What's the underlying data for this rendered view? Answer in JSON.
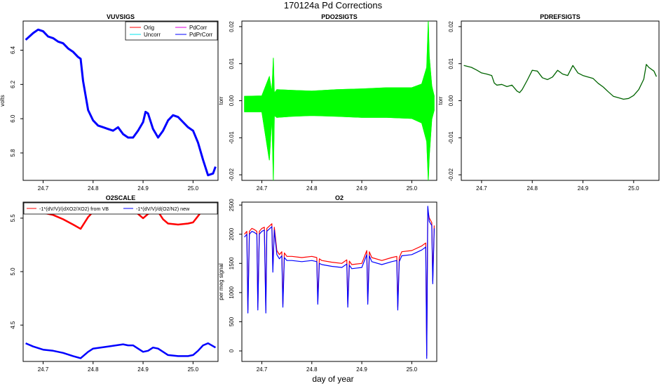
{
  "figure": {
    "title": "170124a   Pd Corrections",
    "xlabel": "day of year"
  },
  "colors": {
    "orig": "#ff0000",
    "uncorr": "#00e5ee",
    "pdcorr": "#dd00dd",
    "pdprcorr": "#0000ff",
    "pdo2": "#00ff00",
    "pdref": "#006400",
    "vb": "#ff0000",
    "new": "#0000ff",
    "axis": "#000000"
  },
  "chart_data": [
    {
      "id": "vuvsigs",
      "type": "line",
      "title": "VUVSIGS",
      "xlabel": "",
      "ylabel": "volts",
      "xlim": [
        24.66,
        25.05
      ],
      "ylim": [
        5.64,
        6.57
      ],
      "xticks": [
        {
          "v": 24.7,
          "label": "24.7"
        },
        {
          "v": 24.8,
          "label": "24.8"
        },
        {
          "v": 24.9,
          "label": "24.9"
        },
        {
          "v": 25.0,
          "label": "25.0"
        }
      ],
      "yticks": [
        {
          "v": 5.8,
          "label": "5.8"
        },
        {
          "v": 6.0,
          "label": "6.0"
        },
        {
          "v": 6.2,
          "label": "6.2"
        },
        {
          "v": 6.4,
          "label": "6.4"
        }
      ],
      "legend_position": "top-right",
      "legend": [
        {
          "label": "Orig",
          "color": "#ff0000"
        },
        {
          "label": "Uncorr",
          "color": "#00e5ee"
        },
        {
          "label": "PdCorr",
          "color": "#dd00dd"
        },
        {
          "label": "PdPrCorr",
          "color": "#0000ff"
        }
      ],
      "series": [
        {
          "name": "PdPrCorr",
          "color": "#0000ff",
          "width": 3,
          "x": [
            24.665,
            24.68,
            24.69,
            24.7,
            24.71,
            24.72,
            24.73,
            24.74,
            24.75,
            24.76,
            24.77,
            24.775,
            24.78,
            24.79,
            24.8,
            24.81,
            24.82,
            24.83,
            24.84,
            24.85,
            24.86,
            24.87,
            24.88,
            24.89,
            24.9,
            24.905,
            24.91,
            24.92,
            24.93,
            24.94,
            24.95,
            24.96,
            24.97,
            24.98,
            24.99,
            25.0,
            25.01,
            25.02,
            25.03,
            25.04,
            25.045
          ],
          "values": [
            6.46,
            6.5,
            6.52,
            6.51,
            6.48,
            6.47,
            6.45,
            6.44,
            6.41,
            6.39,
            6.36,
            6.35,
            6.22,
            6.05,
            5.99,
            5.96,
            5.95,
            5.94,
            5.93,
            5.95,
            5.91,
            5.89,
            5.89,
            5.93,
            5.98,
            6.04,
            6.03,
            5.94,
            5.89,
            5.93,
            5.99,
            6.02,
            6.01,
            5.98,
            5.95,
            5.93,
            5.86,
            5.76,
            5.67,
            5.68,
            5.72
          ]
        }
      ]
    },
    {
      "id": "pdo2sigts",
      "type": "line",
      "title": "PDO2SIGTS",
      "xlabel": "",
      "ylabel": "torr",
      "xlim": [
        24.66,
        25.05
      ],
      "ylim": [
        -0.0215,
        0.0215
      ],
      "xticks": [
        {
          "v": 24.7,
          "label": "24.7"
        },
        {
          "v": 24.8,
          "label": "24.8"
        },
        {
          "v": 24.9,
          "label": "24.9"
        },
        {
          "v": 25.0,
          "label": "25.0"
        }
      ],
      "yticks": [
        {
          "v": -0.02,
          "label": "-0.02"
        },
        {
          "v": -0.01,
          "label": "-0.01"
        },
        {
          "v": 0.0,
          "label": "0.00"
        },
        {
          "v": 0.01,
          "label": "0.01"
        },
        {
          "v": 0.02,
          "label": "0.02"
        }
      ],
      "series": [
        {
          "name": "PDO2 noise envelope upper",
          "color": "#00ff00",
          "width": 1,
          "x": [
            24.665,
            24.7,
            24.715,
            24.72,
            24.723,
            24.725,
            24.73,
            24.76,
            24.8,
            24.85,
            24.9,
            24.95,
            25.0,
            25.02,
            25.03,
            25.033,
            25.035,
            25.04,
            25.045
          ],
          "values": [
            0.0012,
            0.0013,
            0.0065,
            0.002,
            0.0115,
            0.002,
            0.003,
            0.0028,
            0.0026,
            0.003,
            0.0032,
            0.0035,
            0.0035,
            0.0045,
            0.009,
            0.0215,
            0.012,
            0.004,
            0.0012
          ]
        },
        {
          "name": "PDO2 noise envelope lower",
          "color": "#00ff00",
          "width": 1,
          "x": [
            24.665,
            24.7,
            24.715,
            24.72,
            24.723,
            24.725,
            24.73,
            24.76,
            24.8,
            24.85,
            24.9,
            24.95,
            25.0,
            25.02,
            25.03,
            25.033,
            25.035,
            25.04,
            25.045
          ],
          "values": [
            -0.003,
            -0.003,
            -0.016,
            -0.004,
            -0.0215,
            -0.004,
            -0.0045,
            -0.0042,
            -0.004,
            -0.0042,
            -0.0045,
            -0.0045,
            -0.0048,
            -0.006,
            -0.011,
            -0.0215,
            -0.015,
            -0.005,
            -0.0025
          ]
        }
      ]
    },
    {
      "id": "pdrefsigts",
      "type": "line",
      "title": "PDREFSIGTS",
      "xlabel": "",
      "ylabel": "torr",
      "xlim": [
        24.66,
        25.05
      ],
      "ylim": [
        -0.0215,
        0.0215
      ],
      "xticks": [
        {
          "v": 24.7,
          "label": "24.7"
        },
        {
          "v": 24.8,
          "label": "24.8"
        },
        {
          "v": 24.9,
          "label": "24.9"
        },
        {
          "v": 25.0,
          "label": "25.0"
        }
      ],
      "yticks": [
        {
          "v": -0.02,
          "label": "-0.02"
        },
        {
          "v": -0.01,
          "label": "-0.01"
        },
        {
          "v": 0.0,
          "label": "0.00"
        },
        {
          "v": 0.01,
          "label": "0.01"
        },
        {
          "v": 0.02,
          "label": "0.02"
        }
      ],
      "series": [
        {
          "name": "PDREF",
          "color": "#006400",
          "width": 1.3,
          "x": [
            24.665,
            24.68,
            24.69,
            24.7,
            24.71,
            24.72,
            24.725,
            24.73,
            24.74,
            24.75,
            24.76,
            24.77,
            24.775,
            24.78,
            24.79,
            24.8,
            24.81,
            24.82,
            24.83,
            24.84,
            24.85,
            24.86,
            24.87,
            24.88,
            24.89,
            24.9,
            24.91,
            24.92,
            24.93,
            24.94,
            24.95,
            24.96,
            24.97,
            24.98,
            24.99,
            25.0,
            25.01,
            25.02,
            25.025,
            25.03,
            25.04,
            25.045
          ],
          "values": [
            0.0095,
            0.009,
            0.0083,
            0.0075,
            0.0072,
            0.0068,
            0.0048,
            0.0042,
            0.0044,
            0.0038,
            0.0042,
            0.0026,
            0.0022,
            0.003,
            0.0055,
            0.0082,
            0.008,
            0.0062,
            0.0057,
            0.0064,
            0.0082,
            0.0072,
            0.0068,
            0.0095,
            0.0075,
            0.0068,
            0.0064,
            0.006,
            0.0047,
            0.0037,
            0.0024,
            0.0012,
            0.0008,
            0.0004,
            0.0006,
            0.0014,
            0.003,
            0.0058,
            0.0098,
            0.009,
            0.008,
            0.0065
          ]
        }
      ]
    },
    {
      "id": "o2scale",
      "type": "line",
      "title": "O2SCALE",
      "xlabel": "",
      "ylabel": "",
      "xlim": [
        24.66,
        25.05
      ],
      "ylim": [
        4.16,
        5.65
      ],
      "xticks": [
        {
          "v": 24.7,
          "label": "24.7"
        },
        {
          "v": 24.8,
          "label": "24.8"
        },
        {
          "v": 24.9,
          "label": "24.9"
        },
        {
          "v": 25.0,
          "label": "25.0"
        }
      ],
      "yticks": [
        {
          "v": 4.5,
          "label": "4.5"
        },
        {
          "v": 5.0,
          "label": "5.0"
        },
        {
          "v": 5.5,
          "label": "5.5"
        }
      ],
      "legend_position": "top",
      "legend": [
        {
          "label": "-1*(dV/V)/(dXO2/XO2) from VB",
          "color": "#ff0000"
        },
        {
          "label": "-1*(dV/V)/d(O2/N2) new",
          "color": "#0000ff"
        }
      ],
      "series": [
        {
          "name": "-1*(dV/V)/(dXO2/XO2) from VB",
          "color": "#ff0000",
          "width": 2.5,
          "x": [
            24.665,
            24.68,
            24.7,
            24.72,
            24.74,
            24.76,
            24.775,
            24.79,
            24.8,
            24.83,
            24.86,
            24.88,
            24.89,
            24.9,
            24.91,
            24.92,
            24.93,
            24.94,
            24.95,
            24.97,
            24.99,
            25.0,
            25.01,
            25.02,
            25.03,
            25.045
          ],
          "values": [
            5.59,
            5.58,
            5.55,
            5.53,
            5.49,
            5.44,
            5.4,
            5.51,
            5.56,
            5.6,
            5.61,
            5.6,
            5.54,
            5.5,
            5.54,
            5.56,
            5.56,
            5.49,
            5.45,
            5.44,
            5.45,
            5.46,
            5.52,
            5.58,
            5.62,
            5.6
          ]
        },
        {
          "name": "-1*(dV/V)/d(O2/N2) new",
          "color": "#0000ff",
          "width": 2.5,
          "x": [
            24.665,
            24.68,
            24.7,
            24.72,
            24.74,
            24.76,
            24.775,
            24.79,
            24.8,
            24.83,
            24.86,
            24.87,
            24.88,
            24.89,
            24.9,
            24.91,
            24.92,
            24.93,
            24.94,
            24.95,
            24.97,
            24.99,
            25.0,
            25.01,
            25.02,
            25.03,
            25.045
          ],
          "values": [
            4.33,
            4.3,
            4.27,
            4.26,
            4.24,
            4.21,
            4.19,
            4.25,
            4.28,
            4.3,
            4.32,
            4.31,
            4.31,
            4.28,
            4.25,
            4.26,
            4.29,
            4.28,
            4.25,
            4.22,
            4.21,
            4.21,
            4.22,
            4.26,
            4.31,
            4.33,
            4.29
          ]
        }
      ]
    },
    {
      "id": "o2",
      "type": "line",
      "title": "O2",
      "xlabel": "",
      "ylabel": "per meg signal",
      "xlim": [
        24.66,
        25.05
      ],
      "ylim": [
        -180,
        2550
      ],
      "xticks": [
        {
          "v": 24.7,
          "label": "24.7"
        },
        {
          "v": 24.8,
          "label": "24.8"
        },
        {
          "v": 24.9,
          "label": "24.9"
        },
        {
          "v": 25.0,
          "label": "25.0"
        }
      ],
      "yticks": [
        {
          "v": 0,
          "label": "0"
        },
        {
          "v": 500,
          "label": "500"
        },
        {
          "v": 1000,
          "label": "1000"
        },
        {
          "v": 1500,
          "label": "1500"
        },
        {
          "v": 2000,
          "label": "2000"
        },
        {
          "v": 2500,
          "label": "2500"
        }
      ],
      "series": [
        {
          "name": "O2 red",
          "color": "#ff0000",
          "width": 1.2,
          "x": [
            24.665,
            24.67,
            24.672,
            24.675,
            24.68,
            24.685,
            24.69,
            24.692,
            24.695,
            24.7,
            24.705,
            24.708,
            24.71,
            24.72,
            24.722,
            24.725,
            24.73,
            24.735,
            24.74,
            24.742,
            24.745,
            24.75,
            24.76,
            24.78,
            24.8,
            24.81,
            24.812,
            24.815,
            24.82,
            24.84,
            24.86,
            24.87,
            24.872,
            24.875,
            24.88,
            24.9,
            24.91,
            24.912,
            24.915,
            24.92,
            24.94,
            24.96,
            24.97,
            24.972,
            24.975,
            24.98,
            25.0,
            25.02,
            25.028,
            25.03,
            25.032,
            25.035,
            25.04,
            25.042,
            25.045
          ],
          "values": [
            2000,
            2050,
            700,
            2050,
            2100,
            2080,
            2050,
            750,
            2050,
            2100,
            2120,
            700,
            2100,
            2180,
            1400,
            2120,
            1720,
            1650,
            1700,
            800,
            1680,
            1620,
            1620,
            1600,
            1620,
            1600,
            850,
            1580,
            1550,
            1520,
            1500,
            1560,
            800,
            1540,
            1480,
            1500,
            1720,
            850,
            1700,
            1600,
            1550,
            1600,
            1620,
            750,
            1600,
            1700,
            1720,
            1800,
            1850,
            -80,
            2420,
            2280,
            2200,
            1200,
            2150
          ]
        },
        {
          "name": "O2 blue",
          "color": "#0000ff",
          "width": 1.2,
          "x": [
            24.665,
            24.67,
            24.672,
            24.675,
            24.68,
            24.685,
            24.69,
            24.692,
            24.695,
            24.7,
            24.705,
            24.708,
            24.71,
            24.72,
            24.722,
            24.725,
            24.73,
            24.735,
            24.74,
            24.742,
            24.745,
            24.75,
            24.76,
            24.78,
            24.8,
            24.81,
            24.812,
            24.815,
            24.82,
            24.84,
            24.86,
            24.87,
            24.872,
            24.875,
            24.88,
            24.9,
            24.91,
            24.912,
            24.915,
            24.92,
            24.94,
            24.96,
            24.97,
            24.972,
            24.975,
            24.98,
            25.0,
            25.02,
            25.028,
            25.03,
            25.032,
            25.035,
            25.04,
            25.042,
            25.045
          ],
          "values": [
            1950,
            2000,
            650,
            2000,
            2050,
            2030,
            2000,
            700,
            2000,
            2050,
            2070,
            650,
            2050,
            2130,
            1350,
            2070,
            1650,
            1580,
            1630,
            750,
            1600,
            1550,
            1550,
            1530,
            1550,
            1530,
            800,
            1500,
            1480,
            1450,
            1430,
            1490,
            750,
            1470,
            1410,
            1430,
            1650,
            800,
            1630,
            1530,
            1480,
            1530,
            1550,
            700,
            1530,
            1630,
            1650,
            1730,
            1780,
            -130,
            2480,
            2220,
            2150,
            1150,
            2100
          ]
        }
      ]
    }
  ]
}
